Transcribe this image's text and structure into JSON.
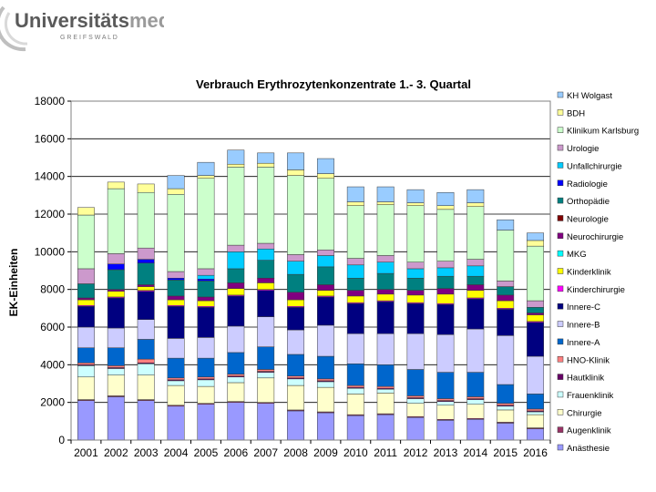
{
  "logo": {
    "name_main": "Universitäts",
    "name_accent": "medizin",
    "city": "G R E I F S W A L D"
  },
  "chart_data": {
    "type": "bar",
    "stacked": true,
    "title": "Verbrauch Erythrozytenkonzentrate 1.- 3. Quartal",
    "ylabel": "EK-Einheiten",
    "xlabel": "",
    "ylim": [
      0,
      18000
    ],
    "yticks": [
      0,
      2000,
      4000,
      6000,
      8000,
      10000,
      12000,
      14000,
      16000,
      18000
    ],
    "ytick_labels": [
      "0",
      "2000",
      "4000",
      "6000",
      "8000",
      "10000",
      "12000",
      "14000",
      "16000",
      "18000"
    ],
    "grid": true,
    "legend_position": "right",
    "categories": [
      "2001",
      "2002",
      "2003",
      "2004",
      "2005",
      "2006",
      "2007",
      "2008",
      "2009",
      "2010",
      "2011",
      "2012",
      "2013",
      "2014",
      "2015",
      "2016"
    ],
    "series": [
      {
        "name": "Anästhesie",
        "color": "#9999ff",
        "values": [
          2100,
          2300,
          2100,
          1800,
          1900,
          2000,
          1950,
          1550,
          1450,
          1300,
          1350,
          1200,
          1050,
          1100,
          900,
          600
        ]
      },
      {
        "name": "Augenklinik",
        "color": "#993366",
        "values": [
          50,
          50,
          50,
          50,
          50,
          50,
          50,
          50,
          50,
          50,
          50,
          50,
          50,
          50,
          50,
          50
        ]
      },
      {
        "name": "Chirurgie",
        "color": "#ffffcc",
        "values": [
          1200,
          1100,
          1300,
          1050,
          900,
          1000,
          1300,
          1300,
          1300,
          1100,
          1100,
          700,
          750,
          750,
          650,
          700
        ]
      },
      {
        "name": "Frauenklinik",
        "color": "#ccffff",
        "values": [
          600,
          350,
          600,
          250,
          350,
          300,
          300,
          350,
          300,
          300,
          200,
          250,
          200,
          250,
          200,
          150
        ]
      },
      {
        "name": "Hautklinik",
        "color": "#660066",
        "values": [
          50,
          50,
          50,
          50,
          50,
          50,
          50,
          50,
          50,
          50,
          50,
          50,
          50,
          50,
          50,
          50
        ]
      },
      {
        "name": "HNO-Klinik",
        "color": "#ff8080",
        "values": [
          100,
          100,
          200,
          100,
          100,
          100,
          100,
          100,
          100,
          100,
          100,
          100,
          100,
          100,
          100,
          100
        ]
      },
      {
        "name": "Innere-A",
        "color": "#0066cc",
        "values": [
          800,
          950,
          1050,
          1050,
          1000,
          1150,
          1200,
          1150,
          1200,
          1150,
          1150,
          1400,
          1400,
          1300,
          1000,
          800
        ]
      },
      {
        "name": "Innere-B",
        "color": "#ccccff",
        "values": [
          1100,
          1050,
          1050,
          1050,
          1100,
          1400,
          1600,
          1300,
          1650,
          1600,
          1650,
          1900,
          2000,
          2300,
          2600,
          2000
        ]
      },
      {
        "name": "Innere-C",
        "color": "#000080",
        "values": [
          1100,
          1600,
          1500,
          1700,
          1600,
          1600,
          1400,
          1200,
          1500,
          1600,
          1700,
          1600,
          1600,
          1600,
          1400,
          1800
        ]
      },
      {
        "name": "Kinderchirurgie",
        "color": "#ff00ff",
        "values": [
          50,
          50,
          50,
          50,
          50,
          50,
          50,
          50,
          50,
          50,
          50,
          50,
          50,
          50,
          50,
          50
        ]
      },
      {
        "name": "Kinderklinik",
        "color": "#ffff00",
        "values": [
          300,
          300,
          200,
          300,
          300,
          350,
          350,
          350,
          300,
          350,
          350,
          400,
          500,
          400,
          400,
          350
        ]
      },
      {
        "name": "MKG",
        "color": "#00ffff",
        "values": [
          0,
          0,
          0,
          0,
          0,
          0,
          0,
          0,
          0,
          0,
          0,
          0,
          0,
          0,
          0,
          0
        ]
      },
      {
        "name": "Neurochirurgie",
        "color": "#800080",
        "values": [
          100,
          100,
          100,
          200,
          200,
          300,
          250,
          400,
          300,
          300,
          250,
          250,
          300,
          300,
          300,
          100
        ]
      },
      {
        "name": "Neurologie",
        "color": "#800000",
        "values": [
          0,
          0,
          0,
          0,
          0,
          0,
          0,
          0,
          0,
          0,
          0,
          0,
          0,
          0,
          0,
          0
        ]
      },
      {
        "name": "Orthopädie",
        "color": "#008080",
        "values": [
          750,
          1050,
          1150,
          850,
          850,
          750,
          950,
          950,
          950,
          650,
          850,
          650,
          650,
          450,
          450,
          300
        ]
      },
      {
        "name": "Radiologie",
        "color": "#0000ff",
        "values": [
          0,
          300,
          200,
          100,
          100,
          0,
          0,
          0,
          0,
          0,
          0,
          0,
          0,
          0,
          0,
          0
        ]
      },
      {
        "name": "Unfallchirurgie",
        "color": "#00ccff",
        "values": [
          0,
          0,
          0,
          0,
          200,
          900,
          600,
          700,
          600,
          700,
          600,
          500,
          450,
          550,
          0,
          0
        ]
      },
      {
        "name": "Urologie",
        "color": "#cc99cc",
        "values": [
          800,
          550,
          600,
          350,
          350,
          350,
          300,
          350,
          300,
          350,
          350,
          350,
          350,
          350,
          300,
          350
        ]
      },
      {
        "name": "Klinikum Karlsburg",
        "color": "#ccffcc",
        "values": [
          2850,
          3450,
          2950,
          4100,
          4800,
          4150,
          4050,
          4200,
          3800,
          2800,
          2700,
          3000,
          2750,
          2800,
          2700,
          2900
        ]
      },
      {
        "name": "BDH",
        "color": "#ffff99",
        "values": [
          400,
          350,
          450,
          300,
          150,
          150,
          200,
          300,
          250,
          200,
          150,
          150,
          200,
          200,
          0,
          300
        ]
      },
      {
        "name": "KH Wolgast",
        "color": "#99ccff",
        "values": [
          0,
          0,
          0,
          700,
          700,
          750,
          550,
          900,
          800,
          800,
          800,
          700,
          700,
          700,
          550,
          400
        ]
      }
    ]
  }
}
